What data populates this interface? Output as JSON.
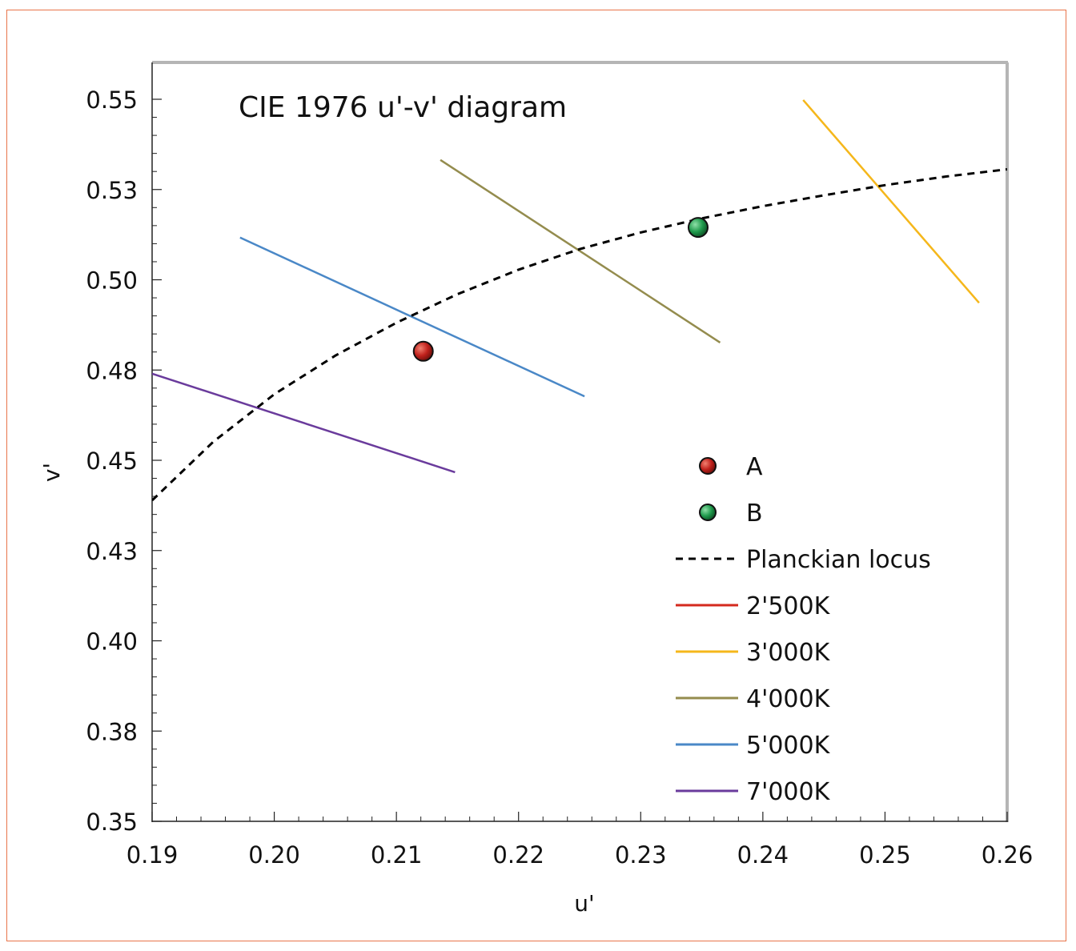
{
  "chart_data": {
    "type": "line",
    "title": "CIE 1976 u'-v' diagram",
    "xlabel": "u'",
    "ylabel": "v'",
    "xlim": [
      0.19,
      0.26
    ],
    "ylim": [
      0.35,
      0.55
    ],
    "x_ticks": [
      "0.19",
      "0.20",
      "0.21",
      "0.22",
      "0.23",
      "0.24",
      "0.25",
      "0.26"
    ],
    "y_ticks": [
      "0.35",
      "0.38",
      "0.40",
      "0.43",
      "0.45",
      "0.48",
      "0.50",
      "0.53",
      "0.55"
    ],
    "grid": false,
    "legend_position": "bottom-right",
    "points": [
      {
        "name": "A",
        "u": 0.2122,
        "v": 0.4802,
        "color": "#c0211c"
      },
      {
        "name": "B",
        "u": 0.2347,
        "v": 0.5145,
        "color": "#1f9a4c"
      }
    ],
    "planckian_locus": {
      "name": "Planckian locus",
      "color": "#000000",
      "u": [
        0.19,
        0.195,
        0.2,
        0.205,
        0.21,
        0.215,
        0.22,
        0.225,
        0.23,
        0.235,
        0.24,
        0.245,
        0.25,
        0.255,
        0.26
      ],
      "v": [
        0.4389,
        0.4551,
        0.4683,
        0.479,
        0.4881,
        0.496,
        0.5028,
        0.5085,
        0.5131,
        0.517,
        0.5204,
        0.5234,
        0.5262,
        0.5286,
        0.5306
      ]
    },
    "series": [
      {
        "name": "2'500K",
        "color": "#d42a1e",
        "u": [],
        "v": []
      },
      {
        "name": "3'000K",
        "color": "#f5b71b",
        "u": [
          0.2433,
          0.2577
        ],
        "v": [
          0.5498,
          0.4936
        ]
      },
      {
        "name": "4'000K",
        "color": "#948c4e",
        "u": [
          0.2136,
          0.2365
        ],
        "v": [
          0.5332,
          0.4826
        ]
      },
      {
        "name": "5'000K",
        "color": "#4a88c7",
        "u": [
          0.1972,
          0.2254
        ],
        "v": [
          0.5117,
          0.4677
        ]
      },
      {
        "name": "7'000K",
        "color": "#6a3b9c",
        "u": [
          0.19,
          0.2148
        ],
        "v": [
          0.474,
          0.4467
        ]
      }
    ]
  }
}
